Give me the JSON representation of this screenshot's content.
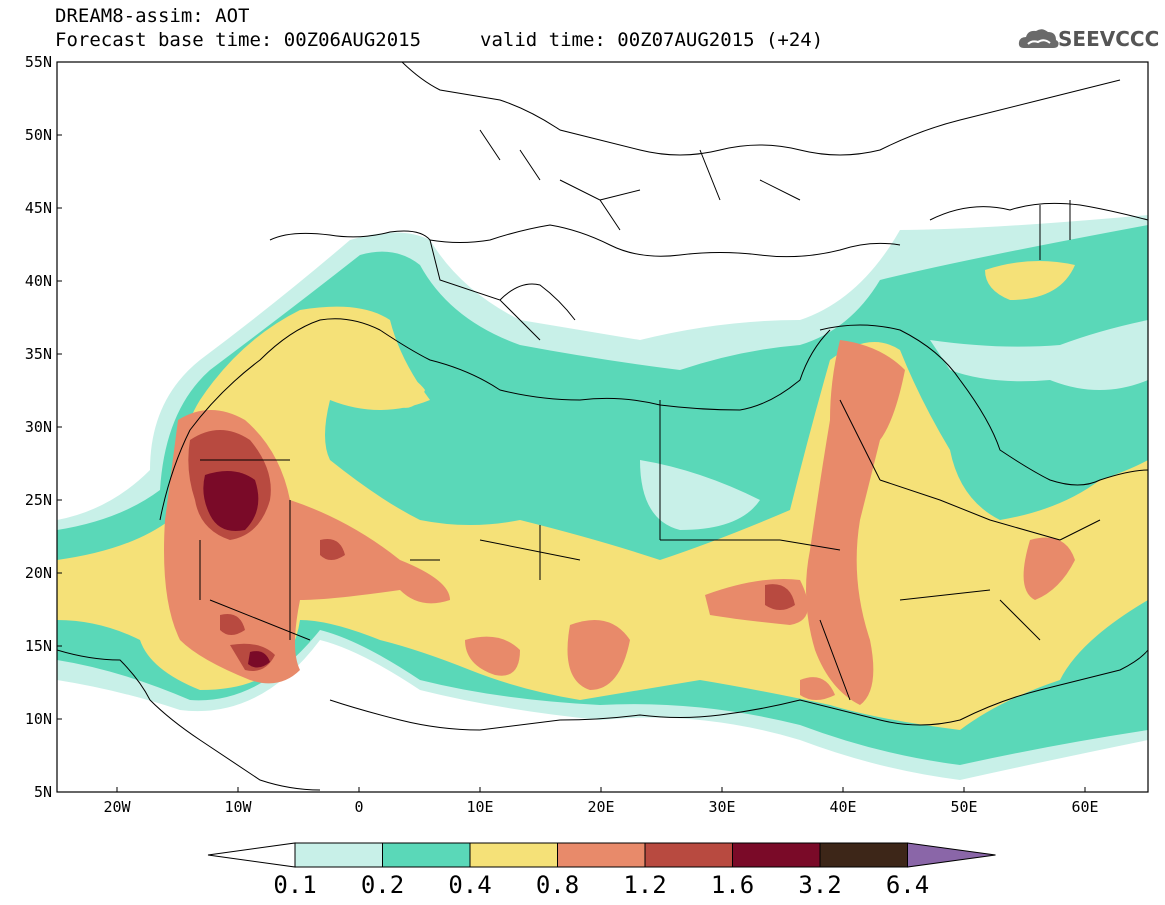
{
  "header": {
    "title": "DREAM8-assim: AOT",
    "base_time": "Forecast base time: 00Z06AUG2015",
    "valid_time": "valid time: 00Z07AUG2015 (+24)",
    "logo_text": "SEEVCCC",
    "logo_icon": "cloud-icon"
  },
  "axes": {
    "lat_labels": [
      "55N",
      "50N",
      "45N",
      "40N",
      "35N",
      "30N",
      "25N",
      "20N",
      "15N",
      "10N",
      "5N"
    ],
    "lon_labels": [
      "20W",
      "10W",
      "0",
      "10E",
      "20E",
      "30E",
      "40E",
      "50E",
      "60E"
    ]
  },
  "colorbar": {
    "levels": [
      "0.1",
      "0.2",
      "0.4",
      "0.8",
      "1.2",
      "1.6",
      "3.2",
      "6.4"
    ],
    "colors": [
      "#ffffff",
      "#c8f0e8",
      "#5ad8b8",
      "#f5e178",
      "#e88a6a",
      "#b84a40",
      "#7a0a28",
      "#3d2618",
      "#8a66a8"
    ]
  },
  "palette": {
    "c1": "#c8f0e8",
    "c2": "#5ad8b8",
    "c3": "#f5e178",
    "c4": "#e88a6a",
    "c5": "#b84a40",
    "c6": "#7a0a28",
    "border": "#000000"
  }
}
